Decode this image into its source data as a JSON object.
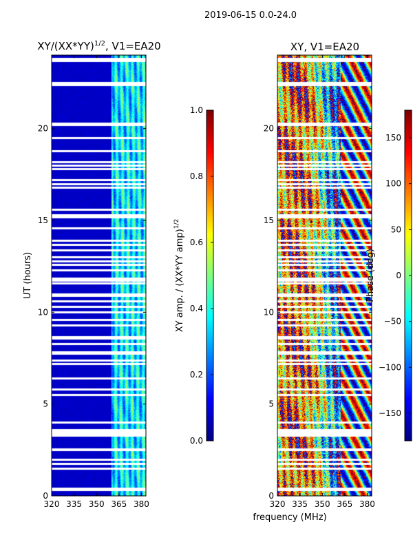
{
  "figure": {
    "suptitle": "2019-06-15 0.0-24.0",
    "xlabel": "frequency (MHz)"
  },
  "chart_data": [
    {
      "type": "heatmap",
      "title_main": "XY/(XX*YY)",
      "title_exp": "1/2",
      "title_tail": ", V1=EA20",
      "xlabel": "",
      "ylabel": "UT (hours)",
      "xlim": [
        320,
        383
      ],
      "ylim": [
        0,
        24
      ],
      "xticks": [
        320,
        335,
        350,
        365,
        380
      ],
      "yticks": [
        0,
        5,
        10,
        15,
        20
      ],
      "colorbar": {
        "label_main": "XY amp. / (XX*YY amp)",
        "label_exp": "1/2",
        "range": [
          0.0,
          1.0
        ],
        "ticks": [
          "0.0",
          "0.2",
          "0.4",
          "0.6",
          "0.8",
          "1.0"
        ],
        "colormap": "jet"
      },
      "background_value_low_band": 0.05,
      "feature_band_MHz": [
        360,
        383
      ]
    },
    {
      "type": "heatmap",
      "title": "XY, V1=EA20",
      "xlabel": "frequency (MHz)",
      "ylabel": "",
      "xlim": [
        320,
        383
      ],
      "ylim": [
        0,
        24
      ],
      "xticks": [
        320,
        335,
        350,
        365,
        380
      ],
      "yticks": [
        0,
        5,
        10,
        15,
        20
      ],
      "colorbar": {
        "label": "Phase (deg)",
        "range": [
          -180,
          180
        ],
        "ticks": [
          "150",
          "100",
          "50",
          "0",
          "−50",
          "−100",
          "−150"
        ],
        "tick_values": [
          150,
          100,
          50,
          0,
          -50,
          -100,
          -150
        ],
        "colormap": "jet"
      }
    }
  ],
  "flagged_hours": [
    0.35,
    0.42,
    1.5,
    1.75,
    2.0,
    2.5,
    2.55,
    3.3,
    3.4,
    3.5,
    3.6,
    4.0,
    5.5,
    5.8,
    6.4,
    7.2,
    7.4,
    7.75,
    7.85,
    8.3,
    8.6,
    8.65,
    9.3,
    9.6,
    10.0,
    10.3,
    10.6,
    10.9,
    11.0,
    11.6,
    11.75,
    11.85,
    12.3,
    12.6,
    12.8,
    13.0,
    13.4,
    13.7,
    13.9,
    14.6,
    15.2,
    15.3,
    15.6,
    16.8,
    17.0,
    17.2,
    17.8,
    18.0,
    18.2,
    18.8,
    19.5,
    20.2,
    20.3,
    22.4,
    22.5,
    23.7,
    23.8
  ],
  "colors": {
    "background": "#ffffff",
    "flag": "#ffffff"
  }
}
